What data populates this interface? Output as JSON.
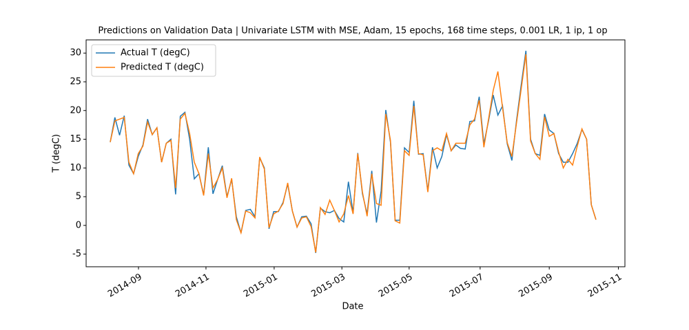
{
  "chart_data": {
    "type": "line",
    "title": "Predictions on Validation Data  | Univariate LSTM with MSE, Adam, 15 epochs, 168 time steps, 0.001 LR, 1 ip, 1 op",
    "xlabel": "Date",
    "ylabel": "T (degC)",
    "xlim": [
      -5.16,
      110.2
    ],
    "xticks": [
      {
        "value": 6.05,
        "label": "2014-09"
      },
      {
        "value": 20.5,
        "label": "2014-11"
      },
      {
        "value": 35.1,
        "label": "2015-01"
      },
      {
        "value": 49.6,
        "label": "2015-03"
      },
      {
        "value": 64.0,
        "label": "2015-05"
      },
      {
        "value": 79.2,
        "label": "2015-07"
      },
      {
        "value": 94.0,
        "label": "2015-09"
      },
      {
        "value": 108.8,
        "label": "2015-11"
      }
    ],
    "ylim": [
      -7.2,
      32.3
    ],
    "yticks": [
      -5,
      0,
      5,
      10,
      15,
      20,
      25,
      30
    ],
    "legend": "upper left",
    "series": [
      {
        "name": "Actual T (degC)",
        "color": "#1f77b4",
        "values": [
          14.5,
          18.8,
          15.7,
          19.1,
          10.5,
          9.0,
          12.0,
          14.0,
          18.5,
          15.8,
          17.0,
          11.0,
          14.3,
          15.0,
          5.4,
          19.0,
          19.7,
          15.0,
          8.1,
          9.0,
          5.3,
          13.6,
          5.5,
          8.0,
          10.4,
          5.0,
          8.0,
          1.5,
          -1.3,
          2.6,
          2.8,
          1.5,
          11.8,
          10.0,
          -0.6,
          2.4,
          2.4,
          4.0,
          7.2,
          2.5,
          -0.3,
          1.5,
          1.6,
          0.3,
          -4.8,
          3.0,
          2.4,
          2.2,
          2.6,
          1.2,
          0.6,
          7.6,
          2.2,
          12.6,
          5.5,
          2.0,
          9.5,
          0.5,
          6.0,
          20.1,
          14.5,
          0.9,
          0.9,
          13.5,
          12.7,
          21.7,
          12.4,
          12.5,
          6.0,
          13.6,
          10.0,
          12.0,
          15.8,
          13.0,
          14.0,
          13.4,
          13.3,
          18.1,
          18.2,
          22.4,
          14.2,
          18.2,
          22.7,
          19.2,
          20.8,
          14.2,
          11.3,
          18.3,
          24.5,
          30.4,
          15.0,
          12.5,
          12.2,
          19.4,
          16.6,
          16.0,
          12.5,
          11.0,
          11.0,
          12.5,
          14.3,
          16.7,
          15.0,
          3.6,
          1.0
        ]
      },
      {
        "name": "Predicted T (degC)",
        "color": "#ff7f0e",
        "values": [
          14.5,
          18.2,
          18.5,
          18.8,
          11.0,
          9.0,
          12.5,
          13.8,
          18.0,
          15.8,
          17.0,
          11.0,
          14.3,
          14.8,
          6.5,
          18.5,
          19.5,
          16.0,
          11.0,
          9.0,
          5.2,
          12.5,
          6.5,
          8.0,
          10.0,
          4.8,
          8.2,
          1.0,
          -1.3,
          2.5,
          2.2,
          1.3,
          11.9,
          9.8,
          -0.4,
          2.0,
          2.5,
          3.8,
          7.4,
          2.5,
          -0.3,
          1.3,
          1.5,
          -0.2,
          -4.7,
          3.1,
          1.9,
          4.4,
          2.6,
          0.6,
          2.0,
          5.2,
          2.0,
          12.5,
          5.8,
          1.6,
          9.0,
          3.8,
          3.5,
          19.4,
          14.8,
          0.8,
          0.4,
          13.0,
          12.2,
          20.8,
          12.5,
          12.3,
          5.8,
          13.0,
          13.5,
          13.0,
          16.0,
          13.0,
          14.3,
          14.3,
          14.3,
          17.5,
          18.5,
          21.8,
          13.6,
          18.5,
          23.5,
          26.8,
          20.5,
          14.4,
          12.0,
          17.9,
          23.8,
          29.8,
          14.7,
          12.5,
          11.5,
          18.9,
          15.5,
          16.0,
          12.8,
          10.0,
          11.5,
          10.5,
          13.8,
          16.8,
          15.0,
          3.6,
          1.0
        ]
      }
    ]
  }
}
